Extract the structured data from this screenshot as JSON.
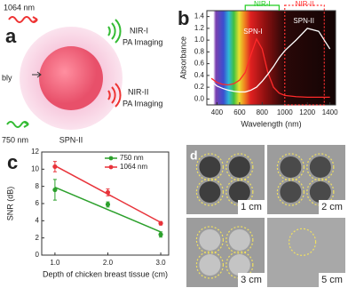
{
  "panel_a": {
    "label": "a",
    "lasers": [
      "1064 nm",
      "750 nm"
    ],
    "assembly": "bly",
    "outputs": [
      {
        "band": "NIR-I",
        "text": "PA Imaging"
      },
      {
        "band": "NIR-II",
        "text": "PA Imaging"
      }
    ],
    "name": "SPN-II"
  },
  "chart_data": [
    {
      "type": "line",
      "panel_label": "b",
      "xlabel": "Wavelength (nm)",
      "ylabel": "Absorbance",
      "x": [
        350,
        400,
        450,
        500,
        550,
        600,
        650,
        700,
        750,
        800,
        850,
        900,
        950,
        1000,
        1100,
        1200,
        1300,
        1400
      ],
      "series": [
        {
          "name": "SPN-I",
          "color": "#ff2a2a",
          "values": [
            0.35,
            0.28,
            0.25,
            0.24,
            0.26,
            0.32,
            0.45,
            0.75,
            1.02,
            0.85,
            0.45,
            0.2,
            0.1,
            0.06,
            0.04,
            0.03,
            0.03,
            0.03
          ]
        },
        {
          "name": "SPN-II",
          "color": "#ffffff",
          "values": [
            0.3,
            0.22,
            0.18,
            0.15,
            0.13,
            0.12,
            0.12,
            0.15,
            0.2,
            0.3,
            0.42,
            0.55,
            0.7,
            0.82,
            1.0,
            1.2,
            1.15,
            0.85
          ]
        }
      ],
      "bands": [
        {
          "name": "NIR-I",
          "range": [
            650,
            950
          ],
          "color": "#22cc22"
        },
        {
          "name": "NIR-II",
          "range": [
            1000,
            1350
          ],
          "color": "#ff3030"
        }
      ],
      "xlim": [
        310,
        1450
      ],
      "xticks": [
        400,
        600,
        800,
        1000,
        1200,
        1400
      ],
      "ylim": [
        -0.1,
        1.5
      ],
      "yticks": [
        {
          "value": 0,
          "label": "0.0"
        },
        0.2,
        0.4,
        0.6,
        0.8,
        {
          "value": 1,
          "label": "1.0"
        },
        1.2,
        1.4
      ]
    },
    {
      "type": "line",
      "panel_label": "c",
      "xlabel": "Depth of chicken breast tissue (cm)",
      "ylabel": "SNR (dB)",
      "x": [
        1,
        2,
        3
      ],
      "series": [
        {
          "name": "750 nm",
          "color": "#2ca02c",
          "values": [
            7.6,
            5.9,
            2.4
          ],
          "errors": [
            1.2,
            0.3,
            0.3
          ]
        },
        {
          "name": "1064 nm",
          "color": "#e8333a",
          "values": [
            10.3,
            7.3,
            3.7
          ],
          "errors": [
            0.6,
            0.4,
            0.2
          ]
        }
      ],
      "xlim": [
        0.75,
        3.15
      ],
      "xticks": [
        {
          "value": 1,
          "label": "1.0"
        },
        {
          "value": 2,
          "label": "2.0"
        },
        {
          "value": 3,
          "label": "3.0"
        }
      ],
      "ylim": [
        0,
        12
      ],
      "yticks": [
        0,
        2,
        4,
        6,
        8,
        10,
        12
      ],
      "legend": "upper right"
    }
  ],
  "panel_d": {
    "label": "d",
    "images": [
      "1 cm",
      "2 cm",
      "3 cm",
      "5 cm"
    ]
  }
}
